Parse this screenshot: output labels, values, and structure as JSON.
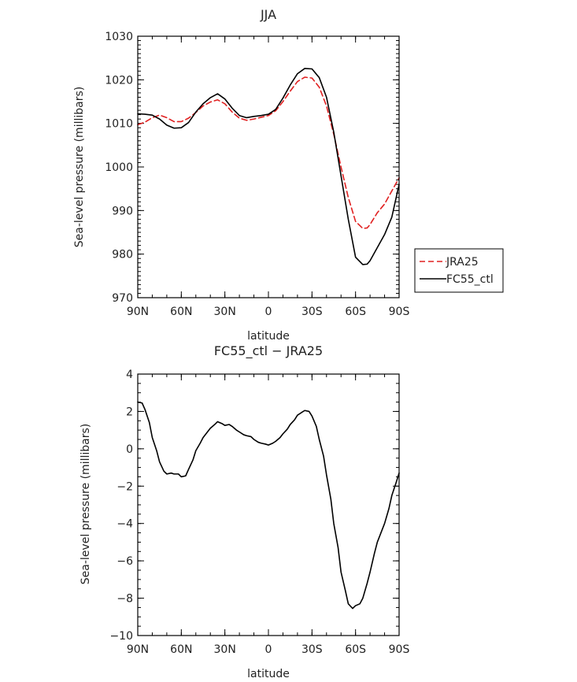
{
  "chart_data": [
    {
      "type": "line",
      "title": "JJA",
      "xlabel": "latitude",
      "ylabel": "Sea-level pressure (millibars)",
      "xlim": [
        90,
        -90
      ],
      "ylim": [
        970,
        1030
      ],
      "x_ticks": [
        90,
        60,
        30,
        0,
        -30,
        -60,
        -90
      ],
      "x_tick_labels": [
        "90N",
        "60N",
        "30N",
        "0",
        "30S",
        "60S",
        "90S"
      ],
      "y_ticks": [
        970,
        980,
        990,
        1000,
        1010,
        1020,
        1030
      ],
      "y_tick_labels": [
        "970",
        "980",
        "990",
        "1000",
        "1010",
        "1020",
        "1030"
      ],
      "grid": false,
      "legend": "right",
      "series": [
        {
          "name": "JRA25",
          "color": "#e02020",
          "dash": "dashed",
          "x": [
            90,
            85,
            80,
            75,
            70,
            65,
            60,
            55,
            50,
            45,
            40,
            35,
            30,
            25,
            20,
            15,
            10,
            5,
            0,
            -5,
            -10,
            -15,
            -20,
            -25,
            -30,
            -35,
            -40,
            -45,
            -50,
            -55,
            -60,
            -65,
            -68,
            -70,
            -75,
            -80,
            -85,
            -90
          ],
          "y": [
            1009.7,
            1010.3,
            1011.3,
            1011.9,
            1011.3,
            1010.4,
            1010.4,
            1011.2,
            1012.5,
            1014.0,
            1014.9,
            1015.4,
            1014.5,
            1012.6,
            1011.2,
            1010.7,
            1011.0,
            1011.4,
            1011.8,
            1012.9,
            1015.0,
            1017.4,
            1019.6,
            1020.6,
            1020.4,
            1018.3,
            1014.0,
            1007.5,
            1000.0,
            993.0,
            987.5,
            985.9,
            986.0,
            986.8,
            989.5,
            991.5,
            994.5,
            997.5
          ]
        },
        {
          "name": "FC55_ctl",
          "color": "#000000",
          "dash": "solid",
          "x": [
            90,
            85,
            80,
            75,
            70,
            65,
            60,
            55,
            50,
            45,
            40,
            35,
            30,
            25,
            20,
            15,
            10,
            5,
            0,
            -5,
            -10,
            -15,
            -20,
            -25,
            -30,
            -35,
            -40,
            -45,
            -50,
            -55,
            -60,
            -65,
            -68,
            -70,
            -75,
            -80,
            -85,
            -90
          ],
          "y": [
            1012.2,
            1012.1,
            1011.9,
            1011.0,
            1009.6,
            1008.9,
            1009.0,
            1010.2,
            1012.6,
            1014.5,
            1015.9,
            1016.8,
            1015.6,
            1013.5,
            1011.8,
            1011.3,
            1011.6,
            1011.8,
            1012.1,
            1013.2,
            1015.8,
            1018.8,
            1021.4,
            1022.6,
            1022.5,
            1020.5,
            1016.0,
            1008.0,
            998.0,
            988.0,
            979.3,
            977.6,
            977.7,
            978.5,
            981.5,
            984.5,
            988.5,
            996.0
          ]
        }
      ]
    },
    {
      "type": "line",
      "title": "FC55_ctl − JRA25",
      "xlabel": "latitude",
      "ylabel": "Sea-level pressure (millibars)",
      "xlim": [
        90,
        -90
      ],
      "ylim": [
        -10,
        4
      ],
      "x_ticks": [
        90,
        60,
        30,
        0,
        -30,
        -60,
        -90
      ],
      "x_tick_labels": [
        "90N",
        "60N",
        "30N",
        "0",
        "30S",
        "60S",
        "90S"
      ],
      "y_ticks": [
        -10,
        -8,
        -6,
        -4,
        -2,
        0,
        2,
        4
      ],
      "y_tick_labels": [
        "−10",
        "−8",
        "−6",
        "−4",
        "−2",
        "0",
        "2",
        "4"
      ],
      "grid": false,
      "legend": "none",
      "series": [
        {
          "name": "",
          "color": "#000000",
          "dash": "solid",
          "x": [
            90,
            87,
            85,
            82,
            80,
            77,
            75,
            72,
            70,
            67,
            65,
            62,
            60,
            57,
            55,
            52,
            50,
            47,
            45,
            42,
            40,
            37,
            35,
            32,
            30,
            27,
            25,
            22,
            20,
            17,
            15,
            12,
            10,
            7,
            5,
            2,
            0,
            -3,
            -5,
            -8,
            -10,
            -13,
            -15,
            -18,
            -20,
            -23,
            -25,
            -28,
            -30,
            -33,
            -35,
            -38,
            -40,
            -43,
            -45,
            -48,
            -50,
            -53,
            -55,
            -58,
            -60,
            -63,
            -65,
            -68,
            -70,
            -73,
            -75,
            -78,
            -80,
            -83,
            -85,
            -88,
            -90
          ],
          "y": [
            2.5,
            2.45,
            2.1,
            1.4,
            0.6,
            -0.1,
            -0.7,
            -1.2,
            -1.35,
            -1.3,
            -1.35,
            -1.35,
            -1.5,
            -1.45,
            -1.1,
            -0.6,
            -0.1,
            0.3,
            0.6,
            0.9,
            1.1,
            1.3,
            1.45,
            1.35,
            1.25,
            1.3,
            1.2,
            1.0,
            0.9,
            0.75,
            0.7,
            0.65,
            0.5,
            0.35,
            0.3,
            0.25,
            0.2,
            0.3,
            0.4,
            0.6,
            0.8,
            1.05,
            1.3,
            1.55,
            1.8,
            1.95,
            2.05,
            2.0,
            1.75,
            1.2,
            0.5,
            -0.4,
            -1.4,
            -2.7,
            -4.0,
            -5.3,
            -6.6,
            -7.6,
            -8.3,
            -8.55,
            -8.4,
            -8.3,
            -8.0,
            -7.2,
            -6.6,
            -5.6,
            -5.0,
            -4.4,
            -4.0,
            -3.2,
            -2.5,
            -1.8,
            -1.3
          ]
        }
      ]
    }
  ]
}
